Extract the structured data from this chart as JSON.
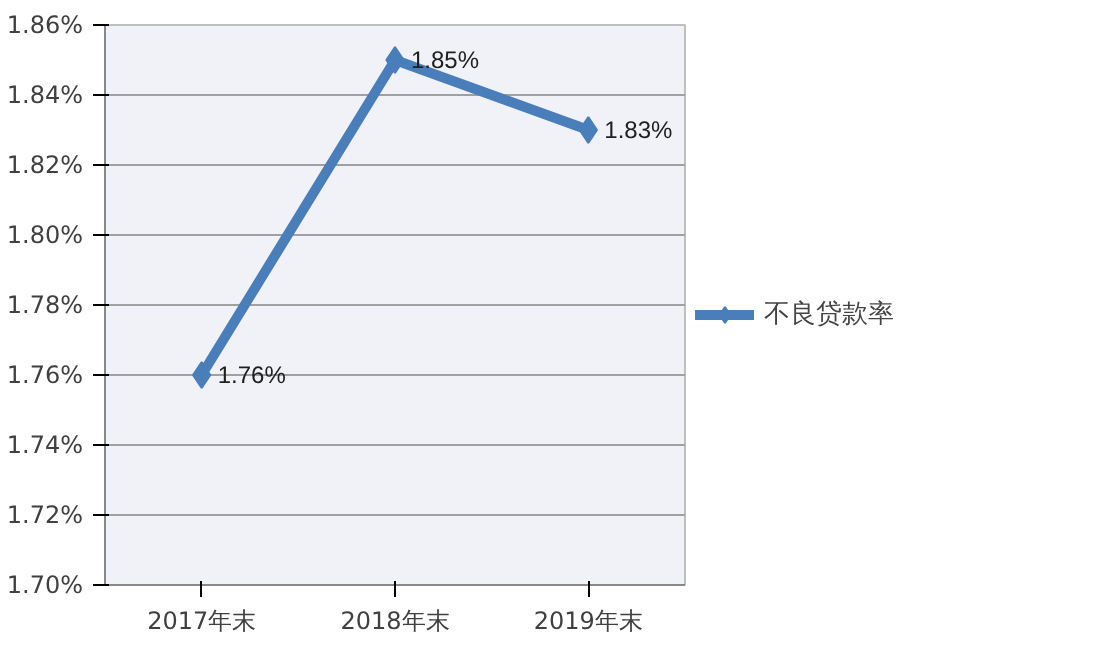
{
  "chart_data": {
    "type": "line",
    "categories": [
      "2017年末",
      "2018年末",
      "2019年末"
    ],
    "series": [
      {
        "name": "不良贷款率",
        "color": "#4a7ebb",
        "values": [
          1.76,
          1.85,
          1.83
        ],
        "value_labels": [
          "1.76%",
          "1.85%",
          "1.83%"
        ]
      }
    ],
    "ylim": [
      1.7,
      1.86
    ],
    "yticks": [
      {
        "value": 1.7,
        "label": "1.70%"
      },
      {
        "value": 1.72,
        "label": "1.72%"
      },
      {
        "value": 1.74,
        "label": "1.74%"
      },
      {
        "value": 1.76,
        "label": "1.76%"
      },
      {
        "value": 1.78,
        "label": "1.78%"
      },
      {
        "value": 1.8,
        "label": "1.80%"
      },
      {
        "value": 1.82,
        "label": "1.82%"
      },
      {
        "value": 1.84,
        "label": "1.84%"
      },
      {
        "value": 1.86,
        "label": "1.86%"
      }
    ],
    "grid": "y",
    "legend": "right",
    "marker": "diamond",
    "line_style": "solid"
  }
}
